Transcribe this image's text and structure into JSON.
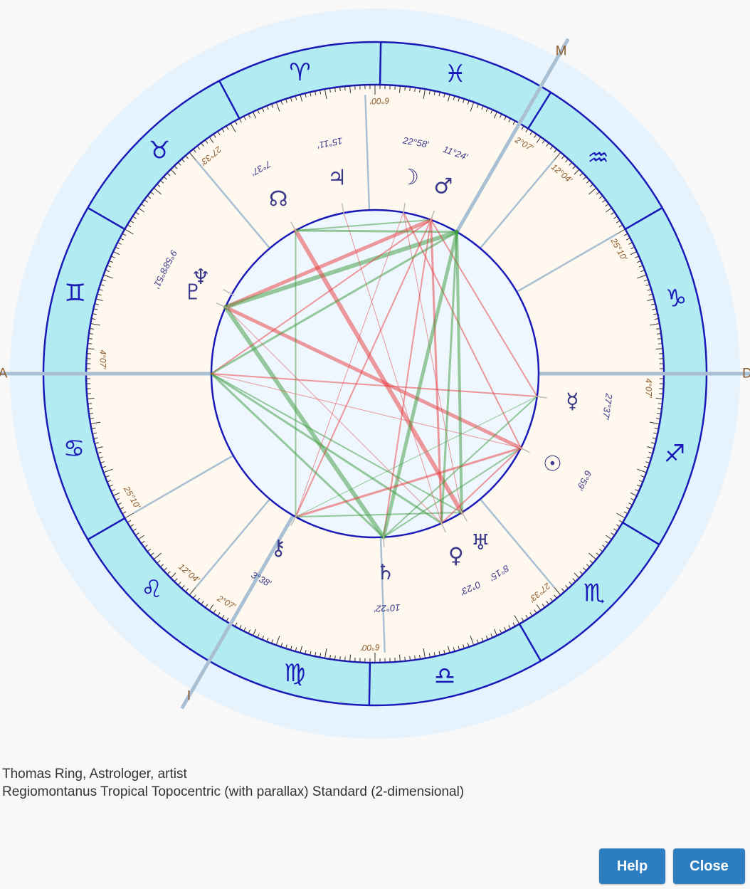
{
  "chart": {
    "colors": {
      "zodiac_ring": "#b2ebf2",
      "ring_stroke": "#1a1ab8",
      "house_area": "#fff8ee",
      "aspect_area": "#eef6fe",
      "halo": "#e6f2fc",
      "house_line": "#a9bfd4",
      "sign_glyph": "#1a1ab8",
      "planet_glyph": "#3a3a8c",
      "cusp_label": "#8a5a2b",
      "harmonious": "#3a9a3a",
      "tension": "#e83838"
    },
    "angles": [
      {
        "name": "ascendant",
        "label": "A",
        "angle": 180
      },
      {
        "name": "descendant",
        "label": "D",
        "angle": 0
      },
      {
        "name": "midheaven",
        "label": "M",
        "angle": 60
      },
      {
        "name": "imum-coeli",
        "label": "I",
        "angle": 240
      }
    ],
    "signs": [
      {
        "name": "aries",
        "glyph": "♈",
        "angle": 104
      },
      {
        "name": "pisces",
        "glyph": "♓",
        "angle": 75
      },
      {
        "name": "aquarius",
        "glyph": "♒",
        "angle": 44
      },
      {
        "name": "capricorn",
        "glyph": "♑",
        "angle": 14
      },
      {
        "name": "sagittarius",
        "glyph": "♐",
        "angle": -15
      },
      {
        "name": "scorpio",
        "glyph": "♏",
        "angle": -45
      },
      {
        "name": "libra",
        "glyph": "♎",
        "angle": -77
      },
      {
        "name": "virgo",
        "glyph": "♍",
        "angle": -105
      },
      {
        "name": "leo",
        "glyph": "♌",
        "angle": -136
      },
      {
        "name": "cancer",
        "glyph": "♋",
        "angle": -166
      },
      {
        "name": "gemini",
        "glyph": "♊",
        "angle": 165
      },
      {
        "name": "taurus",
        "glyph": "♉",
        "angle": 134
      }
    ],
    "sign_boundaries": [
      89,
      58,
      30,
      0,
      -31,
      -60,
      -91,
      -120,
      -150,
      180,
      150,
      118
    ],
    "cusps": [
      {
        "angle": 180,
        "label": "4°07′",
        "major": true
      },
      {
        "angle": 210,
        "label": "25°10′",
        "major": false
      },
      {
        "angle": 230,
        "label": "12°04′",
        "major": false
      },
      {
        "angle": 240,
        "label": "2°07′",
        "major": true
      },
      {
        "angle": 272,
        "label": "6°00′",
        "major": false
      },
      {
        "angle": 310,
        "label": "27°33′",
        "major": false
      },
      {
        "angle": 0,
        "label": "4°07′",
        "major": true
      },
      {
        "angle": 30,
        "label": "25°10′",
        "major": false
      },
      {
        "angle": 50,
        "label": "12°04′",
        "major": false
      },
      {
        "angle": 60,
        "label": "2°07′",
        "major": true
      },
      {
        "angle": 92,
        "label": "6°00′",
        "major": false
      },
      {
        "angle": 130,
        "label": "27°33′",
        "major": false
      }
    ],
    "planets": [
      {
        "name": "north-node",
        "glyph": "☊",
        "deg": "7°37′",
        "angle": 119
      },
      {
        "name": "jupiter",
        "glyph": "♃",
        "deg": "15°11′",
        "angle": 101
      },
      {
        "name": "moon",
        "glyph": "☽",
        "deg": "22°58′",
        "angle": 80
      },
      {
        "name": "mars",
        "glyph": "♂",
        "deg": "11°24′",
        "angle": 70
      },
      {
        "name": "pluto",
        "glyph": "♇",
        "deg": "8°51′",
        "angle": 156
      },
      {
        "name": "neptune",
        "glyph": "♆",
        "deg": "9°58′",
        "angle": 151
      },
      {
        "name": "mercury",
        "glyph": "☿",
        "deg": "27°37′",
        "angle": -8
      },
      {
        "name": "sun",
        "glyph": "☉",
        "deg": "6°59′",
        "angle": -27
      },
      {
        "name": "uranus",
        "glyph": "♅",
        "deg": "8°15′",
        "angle": -58
      },
      {
        "name": "venus",
        "glyph": "♀",
        "deg": "0°23′",
        "angle": -66
      },
      {
        "name": "saturn",
        "glyph": "♄",
        "deg": "10°22′",
        "angle": -87
      },
      {
        "name": "chiron",
        "glyph": "⚷",
        "deg": "3°38′",
        "angle": -119
      }
    ],
    "aspects": [
      {
        "from": "pluto",
        "to": "mars",
        "type": "tension",
        "w": 5
      },
      {
        "from": "pluto",
        "to": "sun",
        "type": "tension",
        "w": 5
      },
      {
        "from": "pluto",
        "to": "saturn",
        "type": "harmonious",
        "w": 6
      },
      {
        "from": "pluto",
        "to": "midheaven",
        "type": "harmonious",
        "w": 6
      },
      {
        "from": "north-node",
        "to": "uranus",
        "type": "tension",
        "w": 6
      },
      {
        "from": "north-node",
        "to": "chiron",
        "type": "harmonious",
        "w": 2
      },
      {
        "from": "north-node",
        "to": "midheaven",
        "type": "harmonious",
        "w": 3
      },
      {
        "from": "north-node",
        "to": "mars",
        "type": "harmonious",
        "w": 2
      },
      {
        "from": "mars",
        "to": "saturn",
        "type": "tension",
        "w": 2
      },
      {
        "from": "mars",
        "to": "venus",
        "type": "tension",
        "w": 3
      },
      {
        "from": "mars",
        "to": "chiron",
        "type": "tension",
        "w": 2
      },
      {
        "from": "mars",
        "to": "mercury",
        "type": "tension",
        "w": 2
      },
      {
        "from": "mars",
        "to": "ascendant",
        "type": "tension",
        "w": 2
      },
      {
        "from": "moon",
        "to": "sun",
        "type": "tension",
        "w": 2
      },
      {
        "from": "moon",
        "to": "uranus",
        "type": "tension",
        "w": 1
      },
      {
        "from": "midheaven",
        "to": "saturn",
        "type": "harmonious",
        "w": 5
      },
      {
        "from": "midheaven",
        "to": "venus",
        "type": "harmonious",
        "w": 3
      },
      {
        "from": "midheaven",
        "to": "uranus",
        "type": "harmonious",
        "w": 4
      },
      {
        "from": "midheaven",
        "to": "ascendant",
        "type": "harmonious",
        "w": 3
      },
      {
        "from": "ascendant",
        "to": "saturn",
        "type": "harmonious",
        "w": 3
      },
      {
        "from": "ascendant",
        "to": "venus",
        "type": "harmonious",
        "w": 3
      },
      {
        "from": "ascendant",
        "to": "uranus",
        "type": "harmonious",
        "w": 2
      },
      {
        "from": "ascendant",
        "to": "mercury",
        "type": "tension",
        "w": 2
      },
      {
        "from": "ascendant",
        "to": "sun",
        "type": "tension",
        "w": 1
      },
      {
        "from": "chiron",
        "to": "sun",
        "type": "tension",
        "w": 3
      },
      {
        "from": "chiron",
        "to": "uranus",
        "type": "harmonious",
        "w": 2
      },
      {
        "from": "chiron",
        "to": "mercury",
        "type": "harmonious",
        "w": 1
      },
      {
        "from": "saturn",
        "to": "mercury",
        "type": "harmonious",
        "w": 2
      },
      {
        "from": "sun",
        "to": "saturn",
        "type": "harmonious",
        "w": 2
      },
      {
        "from": "sun",
        "to": "venus",
        "type": "tension",
        "w": 2
      },
      {
        "from": "jupiter",
        "to": "venus",
        "type": "tension",
        "w": 1
      },
      {
        "from": "pluto",
        "to": "venus",
        "type": "tension",
        "w": 1
      },
      {
        "from": "moon",
        "to": "chiron",
        "type": "tension",
        "w": 1
      }
    ]
  },
  "caption": {
    "line1": "Thomas Ring, Astrologer, artist",
    "line2": "Regiomontanus Tropical Topocentric (with parallax) Standard (2-dimensional)"
  },
  "buttons": {
    "help": "Help",
    "close": "Close"
  }
}
